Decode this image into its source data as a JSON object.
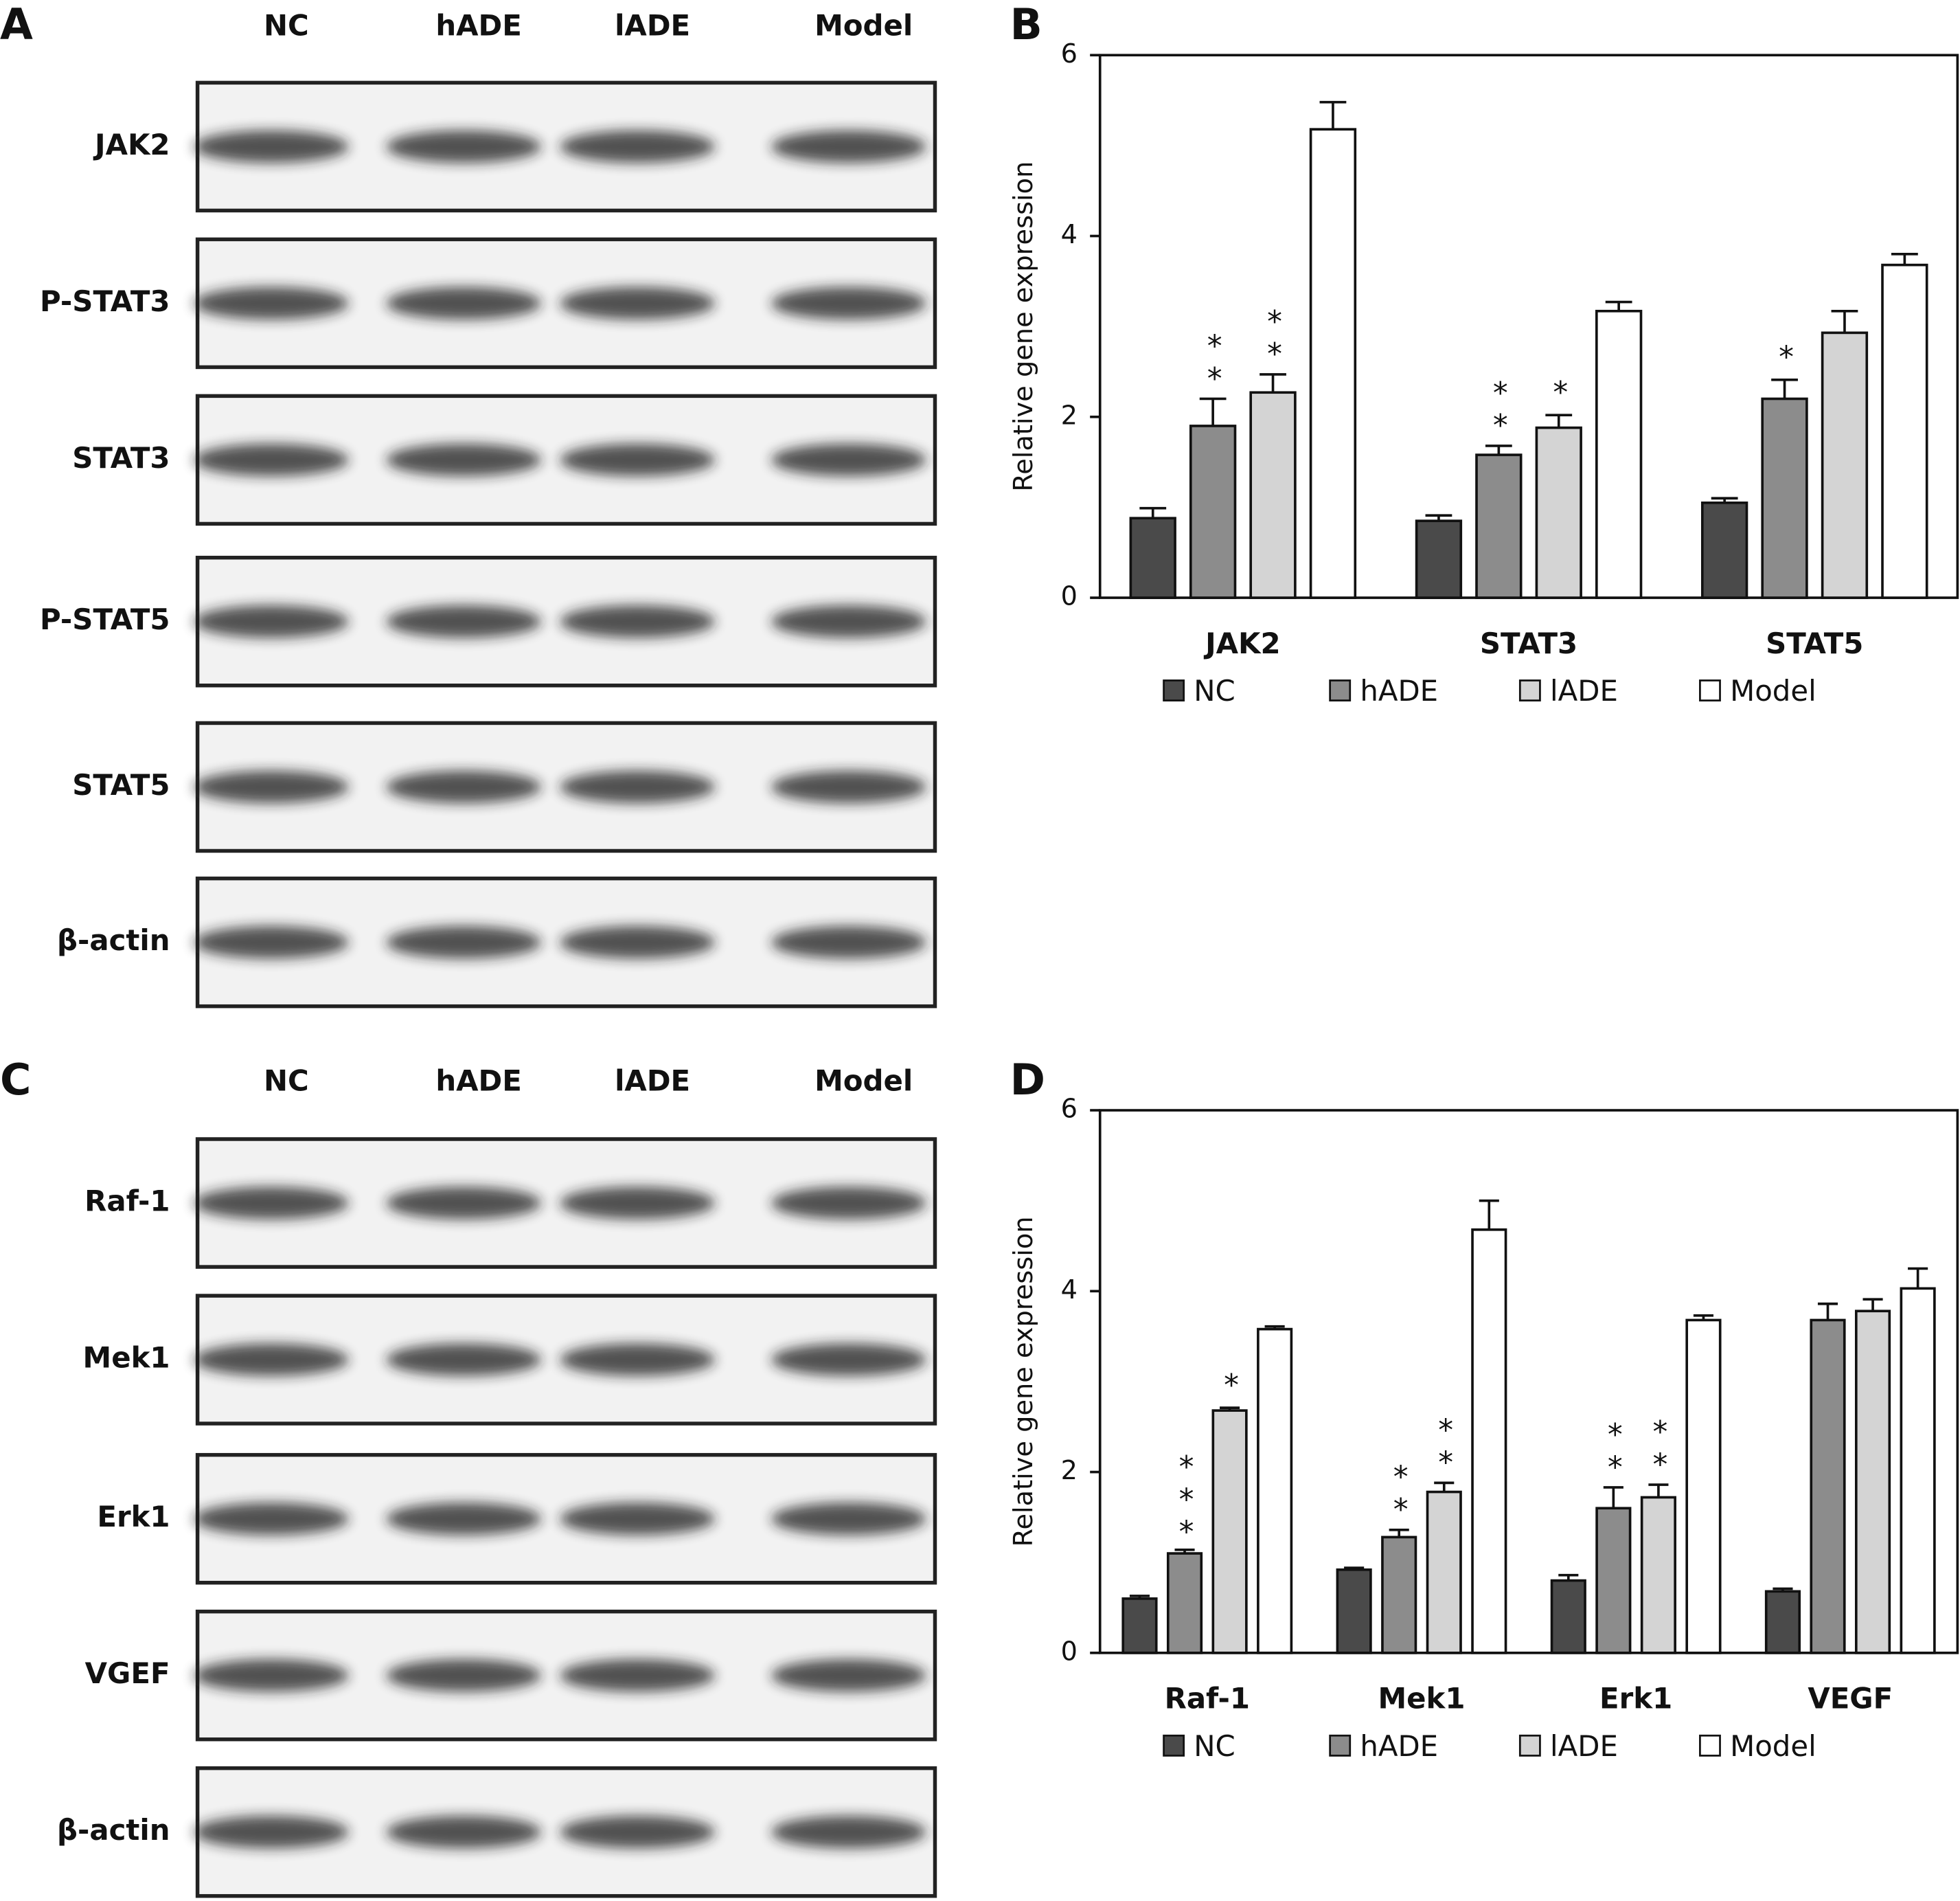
{
  "blots": [
    {
      "panel": "A",
      "lanes": [
        "NC",
        "hADE",
        "lADE",
        "Model"
      ],
      "rows": [
        "JAK2",
        "P-STAT3",
        "STAT3",
        "P-STAT5",
        "STAT5",
        "β-actin"
      ]
    },
    {
      "panel": "C",
      "lanes": [
        "NC",
        "hADE",
        "lADE",
        "Model"
      ],
      "rows": [
        "Raf-1",
        "Mek1",
        "Erk1",
        "VGEF",
        "β-actin"
      ]
    }
  ],
  "chart_data": [
    {
      "type": "bar",
      "panel": "B",
      "ylabel": "Relative gene expression",
      "categories": [
        "JAK2",
        "STAT3",
        "STAT5"
      ],
      "ylim": [
        0,
        6
      ],
      "yticks": [
        0,
        2,
        4,
        6
      ],
      "series": [
        {
          "name": "NC",
          "color": "#4a4a4a",
          "values": [
            0.88,
            0.85,
            1.05
          ],
          "errors": [
            0.11,
            0.06,
            0.05
          ],
          "annotations": [
            null,
            null,
            null
          ]
        },
        {
          "name": "hADE",
          "color": "#8c8c8c",
          "values": [
            1.9,
            1.58,
            2.2
          ],
          "errors": [
            0.3,
            0.1,
            0.21
          ],
          "annotations": [
            "**",
            "**",
            "*"
          ]
        },
        {
          "name": "lADE",
          "color": "#d4d4d4",
          "values": [
            2.27,
            1.88,
            2.93
          ],
          "errors": [
            0.2,
            0.14,
            0.24
          ],
          "annotations": [
            "**",
            "*",
            null
          ]
        },
        {
          "name": "Model",
          "color": "#ffffff",
          "values": [
            5.18,
            3.17,
            3.68
          ],
          "errors": [
            0.3,
            0.1,
            0.12
          ],
          "annotations": [
            null,
            null,
            null
          ]
        }
      ]
    },
    {
      "type": "bar",
      "panel": "D",
      "ylabel": "Relative gene expression",
      "categories": [
        "Raf-1",
        "Mek1",
        "Erk1",
        "VEGF"
      ],
      "ylim": [
        0,
        6
      ],
      "yticks": [
        0,
        2,
        4,
        6
      ],
      "series": [
        {
          "name": "NC",
          "color": "#4a4a4a",
          "values": [
            0.6,
            0.92,
            0.8,
            0.68
          ],
          "errors": [
            0.03,
            0.02,
            0.06,
            0.03
          ],
          "annotations": [
            null,
            null,
            null,
            null
          ]
        },
        {
          "name": "hADE",
          "color": "#8c8c8c",
          "values": [
            1.1,
            1.28,
            1.6,
            3.68
          ],
          "errors": [
            0.04,
            0.08,
            0.23,
            0.18
          ],
          "annotations": [
            "***",
            "**",
            "**",
            null
          ]
        },
        {
          "name": "lADE",
          "color": "#d4d4d4",
          "values": [
            2.68,
            1.78,
            1.72,
            3.78
          ],
          "errors": [
            0.03,
            0.1,
            0.14,
            0.13
          ],
          "annotations": [
            "*",
            "**",
            "**",
            null
          ]
        },
        {
          "name": "Model",
          "color": "#ffffff",
          "values": [
            3.58,
            4.68,
            3.68,
            4.03
          ],
          "errors": [
            0.03,
            0.32,
            0.05,
            0.22
          ],
          "annotations": [
            null,
            null,
            null,
            null
          ]
        }
      ]
    }
  ]
}
